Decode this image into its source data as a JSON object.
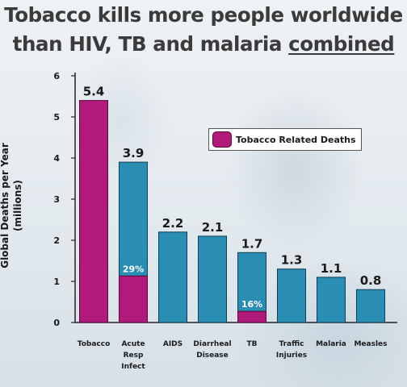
{
  "title": {
    "line1": "Tobacco kills more people worldwide",
    "line2_prefix": "than HIV, TB and malaria ",
    "line2_emphasis": "combined"
  },
  "colors": {
    "series_total": "#2a8db3",
    "series_tobacco": "#b1197a",
    "bar_outline": "#0f3f52"
  },
  "chart_data": {
    "type": "bar",
    "stacked": true,
    "ylabel": "Global Deaths per Year",
    "ylabel_unit": "(millions)",
    "ylim": [
      0,
      6
    ],
    "yticks": [
      0,
      1,
      2,
      3,
      4,
      5,
      6
    ],
    "grid": false,
    "legend_position": "upper-right",
    "categories": [
      "Tobacco",
      "Acute Resp Infect",
      "AIDS",
      "Diarrheal Disease",
      "TB",
      "Traffic Injuries",
      "Malaria",
      "Measles"
    ],
    "category_lines": [
      [
        "Tobacco"
      ],
      [
        "Acute",
        "Resp",
        "Infect"
      ],
      [
        "AIDS"
      ],
      [
        "Diarrheal",
        "Disease"
      ],
      [
        "TB"
      ],
      [
        "Traffic",
        "Injuries"
      ],
      [
        "Malaria"
      ],
      [
        "Measles"
      ]
    ],
    "totals": [
      5.4,
      3.9,
      2.2,
      2.1,
      1.7,
      1.3,
      1.1,
      0.8
    ],
    "total_labels": [
      "5.4",
      "3.9",
      "2.2",
      "2.1",
      "1.7",
      "1.3",
      "1.1",
      "0.8"
    ],
    "series": [
      {
        "name": "Tobacco Related Deaths",
        "values": [
          5.4,
          1.13,
          0,
          0,
          0.27,
          0,
          0,
          0
        ]
      }
    ],
    "segment_labels": [
      "",
      "29%",
      "",
      "",
      "16%",
      "",
      "",
      ""
    ]
  }
}
